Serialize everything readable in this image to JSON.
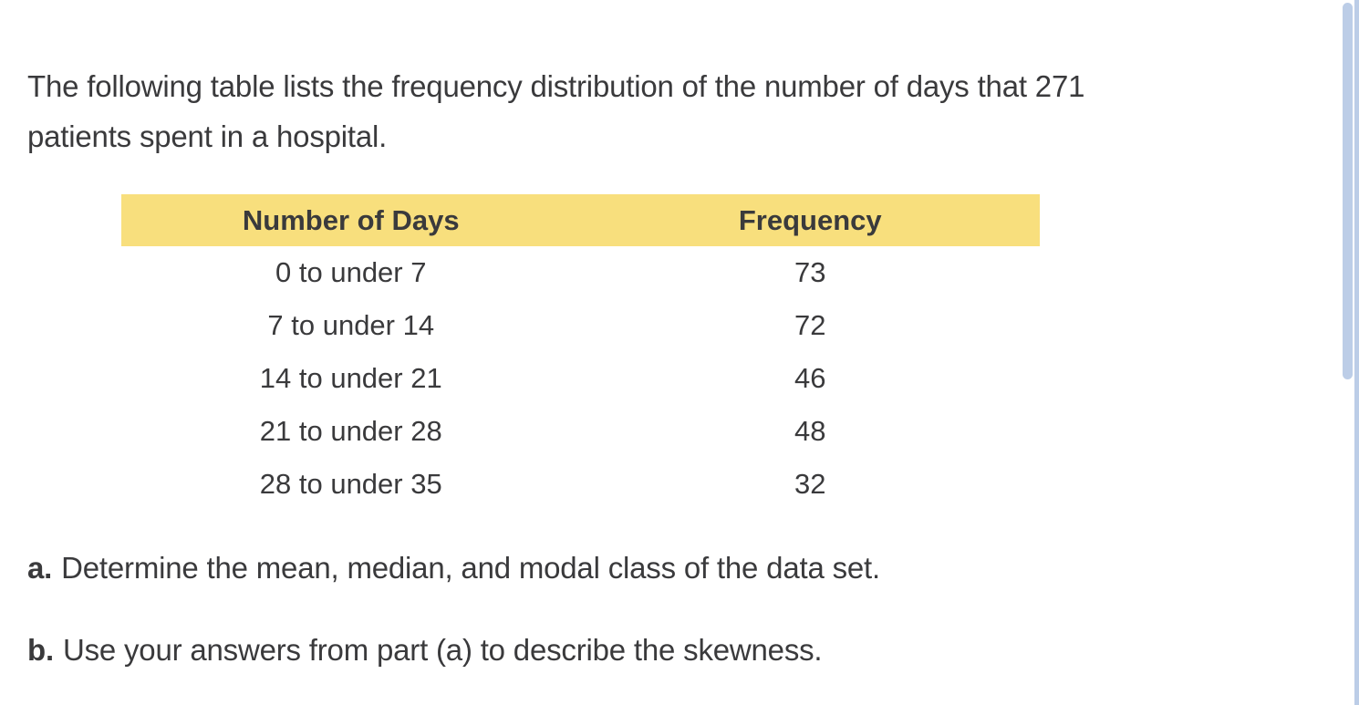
{
  "colors": {
    "background": "#ffffff",
    "text": "#3a3a3c",
    "table_header_bg": "#f8df7d",
    "scrollbar": "#bccde7"
  },
  "intro": {
    "text": "The following table lists the frequency distribution of the number of days that 271 patients spent in a hospital."
  },
  "table": {
    "columns": [
      "Number of Days",
      "Frequency"
    ],
    "rows": [
      {
        "days": "0 to under 7",
        "frequency": "73"
      },
      {
        "days": "7 to under 14",
        "frequency": "72"
      },
      {
        "days": "14 to under 21",
        "frequency": "46"
      },
      {
        "days": "21 to under 28",
        "frequency": "48"
      },
      {
        "days": "28 to under 35",
        "frequency": "32"
      }
    ]
  },
  "questions": [
    {
      "label": "a.",
      "text": "Determine the mean, median, and modal class of the data set."
    },
    {
      "label": "b.",
      "text": "Use your answers from part (a) to describe the skewness."
    }
  ]
}
